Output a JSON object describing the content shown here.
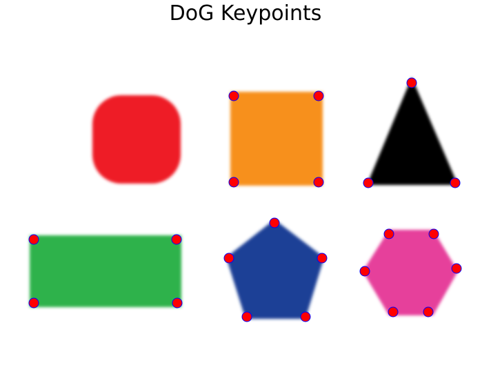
{
  "title": "DoG Keypoints",
  "keypoint_style": {
    "fill": "#ff0000",
    "stroke": "#0000ff"
  },
  "shapes": [
    {
      "name": "circle",
      "color": "#ee1c25",
      "keypoint_count": 0
    },
    {
      "name": "square",
      "color": "#f7901e",
      "keypoint_count": 4
    },
    {
      "name": "triangle",
      "color": "#000000",
      "keypoint_count": 3
    },
    {
      "name": "rectangle",
      "color": "#2db24c",
      "keypoint_count": 4
    },
    {
      "name": "pentagon",
      "color": "#1f3f96",
      "keypoint_count": 5
    },
    {
      "name": "hexagon",
      "color": "#e6409b",
      "keypoint_count": 6
    }
  ]
}
